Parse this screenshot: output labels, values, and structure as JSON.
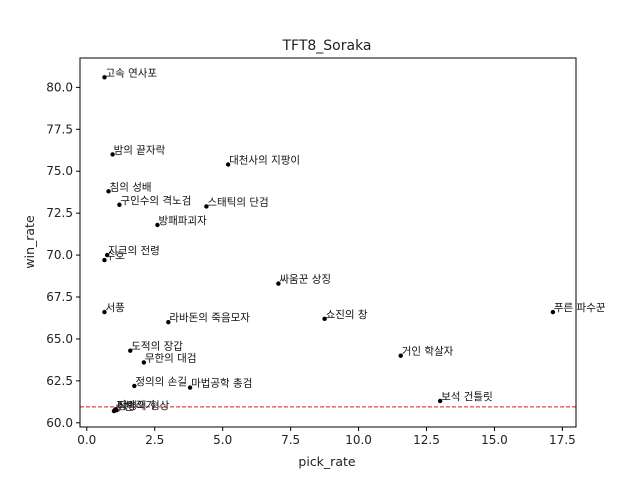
{
  "chart_data": {
    "type": "scatter",
    "title": "TFT8_Soraka",
    "xlabel": "pick_rate",
    "ylabel": "win_rate",
    "xlim": [
      -0.25,
      18.0
    ],
    "ylim": [
      59.75,
      81.75
    ],
    "xticks": [
      0.0,
      2.5,
      5.0,
      7.5,
      10.0,
      12.5,
      15.0,
      17.5
    ],
    "yticks": [
      60.0,
      62.5,
      65.0,
      67.5,
      70.0,
      72.5,
      75.0,
      77.5,
      80.0
    ],
    "xtick_labels": [
      "0.0",
      "2.5",
      "5.0",
      "7.5",
      "10.0",
      "12.5",
      "15.0",
      "17.5"
    ],
    "ytick_labels": [
      "60.0",
      "62.5",
      "65.0",
      "67.5",
      "70.0",
      "72.5",
      "75.0",
      "77.5",
      "80.0"
    ],
    "grid": false,
    "reference_line": {
      "axis": "y",
      "value": 60.95,
      "color": "#e41a1c",
      "style": "dashed"
    },
    "marker_color": "#000000",
    "points": [
      {
        "label": "고속 연사포",
        "x": 0.65,
        "y": 80.6
      },
      {
        "label": "밤의 끝자락",
        "x": 0.95,
        "y": 76.0
      },
      {
        "label": "대천사의 지팡이",
        "x": 5.2,
        "y": 75.4
      },
      {
        "label": "침의 성배",
        "x": 0.8,
        "y": 73.8
      },
      {
        "label": "구인수의 격노검",
        "x": 1.2,
        "y": 73.0
      },
      {
        "label": "스태틱의 단검",
        "x": 4.4,
        "y": 72.9
      },
      {
        "label": "방패파괴자",
        "x": 2.6,
        "y": 71.8
      },
      {
        "label": "지크의 전령",
        "x": 0.75,
        "y": 70.0
      },
      {
        "label": "수호",
        "x": 0.65,
        "y": 69.7
      },
      {
        "label": "싸움꾼 상징",
        "x": 7.05,
        "y": 68.3
      },
      {
        "label": "서풍",
        "x": 0.65,
        "y": 66.6
      },
      {
        "label": "라바돈의 죽음모자",
        "x": 3.0,
        "y": 66.0
      },
      {
        "label": "쇼진의 창",
        "x": 8.75,
        "y": 66.2
      },
      {
        "label": "푸른 파수꾼",
        "x": 17.15,
        "y": 66.6
      },
      {
        "label": "도적의 장갑",
        "x": 1.6,
        "y": 64.3
      },
      {
        "label": "거인 학살자",
        "x": 11.55,
        "y": 64.0
      },
      {
        "label": "무한의 대검",
        "x": 2.1,
        "y": 63.6
      },
      {
        "label": "정의의 손길",
        "x": 1.75,
        "y": 62.2
      },
      {
        "label": "마법공학 총검",
        "x": 3.8,
        "y": 62.1
      },
      {
        "label": "보석 건틀릿",
        "x": 13.0,
        "y": 61.3
      },
      {
        "label": "피바라기",
        "x": 1.05,
        "y": 60.8
      },
      {
        "label": "정령의 형상",
        "x": 1.1,
        "y": 60.75
      },
      {
        "label": "수은",
        "x": 1.0,
        "y": 60.7
      }
    ]
  }
}
